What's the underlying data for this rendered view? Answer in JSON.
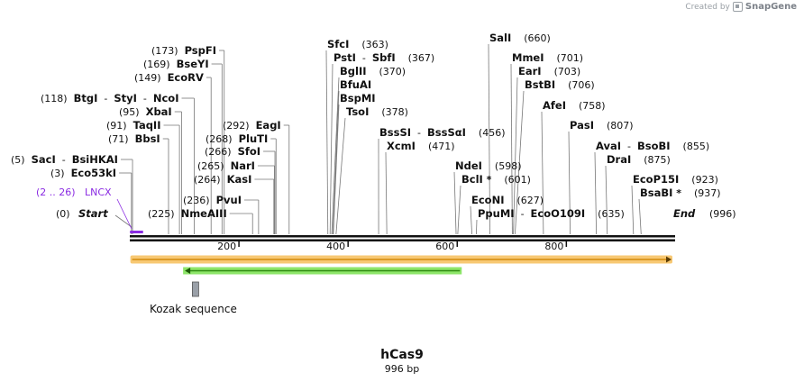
{
  "credit": {
    "text": "Created by",
    "brand": "SnapGene"
  },
  "title": "hCas9",
  "length_label": "996 bp",
  "sequence_length": 996,
  "colors": {
    "primer": "#8a2be2",
    "cds_fill": "#f7c873",
    "cds_arrow": "#d28a0c",
    "orf_fill": "#8ee66a",
    "orf_arrow": "#2f8a12",
    "kozak": "#9aa0a8"
  },
  "ticks": [
    {
      "value": 200,
      "label": "200"
    },
    {
      "value": 400,
      "label": "400"
    },
    {
      "value": 600,
      "label": "600"
    },
    {
      "value": 800,
      "label": "800"
    }
  ],
  "start_label": {
    "pos": "(0)",
    "name": "Start"
  },
  "end_label": {
    "name": "End",
    "pos": "(996)"
  },
  "primer": {
    "range": "(2 .. 26)",
    "name": "LNCX",
    "start": 2,
    "end": 26
  },
  "features": {
    "cds": {
      "start": 1,
      "end": 996
    },
    "orf": {
      "start": 96,
      "end": 600
    },
    "kozak": {
      "start": 113,
      "end": 124,
      "label": "Kozak sequence"
    }
  },
  "sites": [
    {
      "id": "sacI",
      "group": "(5)",
      "names": [
        "SacI",
        "BsiHKAI"
      ],
      "star": false,
      "site": 5,
      "mid": 5
    },
    {
      "id": "eco53kI",
      "group": "(3)",
      "names": [
        "Eco53kI"
      ],
      "star": false,
      "site": 3,
      "mid": 3
    },
    {
      "id": "bbsI",
      "group": "(71)",
      "names": [
        "BbsI"
      ],
      "star": false,
      "site": 71,
      "mid": 71
    },
    {
      "id": "taqII",
      "group": "(91)",
      "names": [
        "TaqII"
      ],
      "star": false,
      "site": 91,
      "mid": 91
    },
    {
      "id": "xbaI",
      "group": "(95)",
      "names": [
        "XbaI"
      ],
      "star": false,
      "site": 95,
      "mid": 95
    },
    {
      "id": "btgI",
      "group": "(118)",
      "names": [
        "BtgI",
        "StyI",
        "NcoI"
      ],
      "star": false,
      "site": 118,
      "mid": 118
    },
    {
      "id": "ecoRV",
      "group": "(149)",
      "names": [
        "EcoRV"
      ],
      "star": false,
      "site": 149,
      "mid": 149
    },
    {
      "id": "bseYI",
      "group": "(169)",
      "names": [
        "BseYI"
      ],
      "star": false,
      "site": 169,
      "mid": 169
    },
    {
      "id": "pspFI",
      "group": "(173)",
      "names": [
        "PspFI"
      ],
      "star": false,
      "site": 173,
      "mid": 173
    },
    {
      "id": "nmeAIII",
      "group": "(225)",
      "names": [
        "NmeAIII"
      ],
      "star": false,
      "site": 225,
      "mid": 225
    },
    {
      "id": "pvuI",
      "group": "(236)",
      "names": [
        "PvuI"
      ],
      "star": false,
      "site": 236,
      "mid": 236
    },
    {
      "id": "kasI",
      "group": "(264)",
      "names": [
        "KasI"
      ],
      "star": false,
      "site": 264,
      "mid": 264
    },
    {
      "id": "narI",
      "group": "(265)",
      "names": [
        "NarI"
      ],
      "star": false,
      "site": 265,
      "mid": 265
    },
    {
      "id": "sfoI",
      "group": "(266)",
      "names": [
        "SfoI"
      ],
      "star": false,
      "site": 266,
      "mid": 266
    },
    {
      "id": "pluTI",
      "group": "(268)",
      "names": [
        "PluTI"
      ],
      "star": false,
      "site": 268,
      "mid": 268
    },
    {
      "id": "eagI",
      "group": "(292)",
      "names": [
        "EagI"
      ],
      "star": false,
      "site": 292,
      "mid": 292
    },
    {
      "id": "sfcI",
      "group": "(363)",
      "names": [
        "SfcI"
      ],
      "star": false,
      "site": 363,
      "mid": 363
    },
    {
      "id": "pstI",
      "group": "(367)",
      "names": [
        "PstI",
        "SbfI"
      ],
      "star": false,
      "site": 367,
      "mid": 367
    },
    {
      "id": "bglII",
      "group": "(370)",
      "names": [
        "BglII"
      ],
      "star": false,
      "site": 370,
      "mid": 370
    },
    {
      "id": "bfuAI",
      "group": "",
      "names": [
        "BfuAI"
      ],
      "star": false,
      "site": 372,
      "mid": 372
    },
    {
      "id": "bspMI",
      "group": "",
      "names": [
        "BspMI"
      ],
      "star": false,
      "site": 373,
      "mid": 373
    },
    {
      "id": "tsoI",
      "group": "(378)",
      "names": [
        "TsoI"
      ],
      "star": false,
      "site": 378,
      "mid": 378
    },
    {
      "id": "bssSI",
      "group": "(456)",
      "names": [
        "BssSI",
        "BssSαI"
      ],
      "star": false,
      "site": 456,
      "mid": 456
    },
    {
      "id": "xcmI",
      "group": "(471)",
      "names": [
        "XcmI"
      ],
      "star": false,
      "site": 471,
      "mid": 471
    },
    {
      "id": "ndeI",
      "group": "(598)",
      "names": [
        "NdeI"
      ],
      "star": false,
      "site": 598,
      "mid": 598
    },
    {
      "id": "bclI",
      "group": "(601)",
      "names": [
        "BclI"
      ],
      "star": true,
      "site": 601,
      "mid": 601
    },
    {
      "id": "ecoNI",
      "group": "(627)",
      "names": [
        "EcoNI"
      ],
      "star": false,
      "site": 627,
      "mid": 627
    },
    {
      "id": "ppuMI",
      "group": "(635)",
      "names": [
        "PpuMI",
        "EcoO109I"
      ],
      "star": false,
      "site": 635,
      "mid": 635
    },
    {
      "id": "salI",
      "group": "(660)",
      "names": [
        "SalI"
      ],
      "star": false,
      "site": 660,
      "mid": 660
    },
    {
      "id": "mmeI",
      "group": "(701)",
      "names": [
        "MmeI"
      ],
      "star": false,
      "site": 701,
      "mid": 701
    },
    {
      "id": "earI",
      "group": "(703)",
      "names": [
        "EarI"
      ],
      "star": false,
      "site": 703,
      "mid": 703
    },
    {
      "id": "bstBI",
      "group": "(706)",
      "names": [
        "BstBI"
      ],
      "star": false,
      "site": 706,
      "mid": 706
    },
    {
      "id": "afeI",
      "group": "(758)",
      "names": [
        "AfeI"
      ],
      "star": false,
      "site": 758,
      "mid": 758
    },
    {
      "id": "pasI",
      "group": "(807)",
      "names": [
        "PasI"
      ],
      "star": false,
      "site": 807,
      "mid": 807
    },
    {
      "id": "avaI",
      "group": "(855)",
      "names": [
        "AvaI",
        "BsoBI"
      ],
      "star": false,
      "site": 855,
      "mid": 855
    },
    {
      "id": "draI",
      "group": "(875)",
      "names": [
        "DraI"
      ],
      "star": false,
      "site": 875,
      "mid": 875
    },
    {
      "id": "ecoP15I",
      "group": "(923)",
      "names": [
        "EcoP15I"
      ],
      "star": false,
      "site": 923,
      "mid": 923
    },
    {
      "id": "bsaBI",
      "group": "(937)",
      "names": [
        "BsaBI"
      ],
      "star": true,
      "site": 937,
      "mid": 937
    }
  ]
}
